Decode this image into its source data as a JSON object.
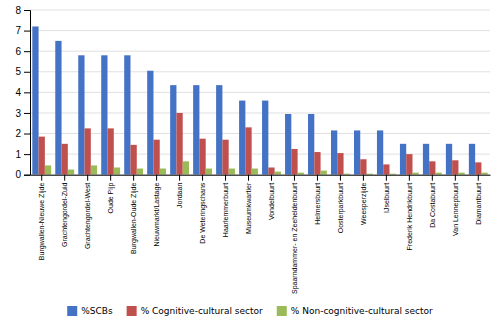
{
  "chart_data": {
    "type": "bar",
    "categories": [
      "Burgwallen-Nieuwe Zijde",
      "Grachtengordel-Zuid",
      "Grachtengordel-West",
      "Oude Pijp",
      "Burgwallen-Oude Zijde",
      "Nieuwmarkt/Lastage",
      "Jordaan",
      "De Weteringschans",
      "Haarlemmerbuurt",
      "Museumkwartier",
      "Vondelbuurt",
      "Spaarndammer- en Zeeheldenbuurt",
      "Helmersbuurt",
      "Oosterparkbuurt",
      "Weesperzijde",
      "IJselbuurt",
      "Frederik Hendrikbuurt",
      "Da Costabuurt",
      "Van Lennepbuurt",
      "Diamantbuurt"
    ],
    "series": [
      {
        "name": "%SCBs",
        "color": "#4472C4",
        "values": [
          7.2,
          6.5,
          5.8,
          5.8,
          5.8,
          5.05,
          4.35,
          4.35,
          4.35,
          3.6,
          3.6,
          2.95,
          2.95,
          2.15,
          2.15,
          2.15,
          1.5,
          1.5,
          1.5,
          1.5
        ]
      },
      {
        "name": "% Cognitive-cultural sector",
        "color": "#C0504D",
        "values": [
          1.85,
          1.5,
          2.25,
          2.25,
          1.45,
          1.7,
          3.0,
          1.75,
          1.7,
          2.3,
          0.35,
          1.25,
          1.1,
          1.05,
          0.75,
          0.5,
          1.0,
          0.65,
          0.7,
          0.6
        ]
      },
      {
        "name": "% Non-cognitive-cultural sector",
        "color": "#9BBB59",
        "values": [
          0.45,
          0.25,
          0.45,
          0.35,
          0.3,
          0.3,
          0.65,
          0.3,
          0.3,
          0.3,
          0.15,
          0.1,
          0.2,
          0.05,
          0.05,
          0.05,
          0.1,
          0.1,
          0.1,
          0.1
        ]
      }
    ],
    "ylim": [
      0,
      8
    ],
    "yticks": [
      0,
      1,
      2,
      3,
      4,
      5,
      6,
      7,
      8
    ],
    "grid": true,
    "legend": "bottom"
  }
}
